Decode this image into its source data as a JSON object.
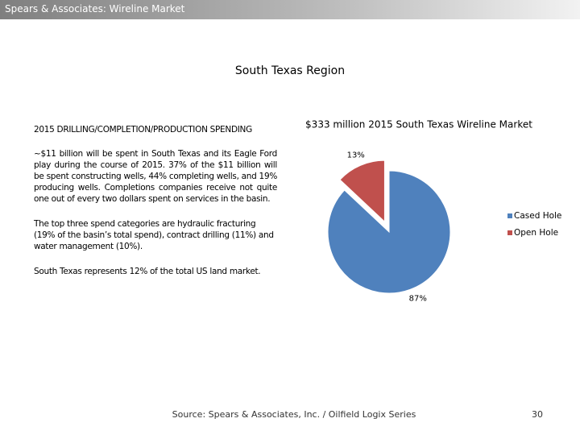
{
  "header": {
    "title": "Spears & Associates:  Wireline Market"
  },
  "region_title": "South Texas Region",
  "left_text": {
    "heading": "2015 DRILLING/COMPLETION/PRODUCTION SPENDING",
    "paragraphs": [
      "~$11 billion will be spent in South Texas and its Eagle Ford play during the course of 2015.  37% of the $11 billion will be spent constructing wells, 44% completing wells, and 19% producing wells.  Completions companies receive not quite one out of every two dollars spent on services in the basin.",
      "The top three spend categories are hydraulic fracturing (19% of the basin’s total spend), contract drilling (11%) and water management (10%).",
      "South Texas represents 12% of the total US land market."
    ]
  },
  "chart_data": {
    "type": "pie",
    "title": "$333 million 2015 South Texas Wireline Market",
    "categories": [
      "Cased Hole",
      "Open Hole"
    ],
    "values": [
      87,
      13
    ],
    "value_labels": [
      "87%",
      "13%"
    ],
    "colors": [
      "#4f81bd",
      "#c0504d"
    ],
    "exploded": [
      false,
      true
    ],
    "legend": "right"
  },
  "footer": {
    "source": "Source: Spears & Associates, Inc. / Oilfield Logix Series",
    "page": "30"
  }
}
